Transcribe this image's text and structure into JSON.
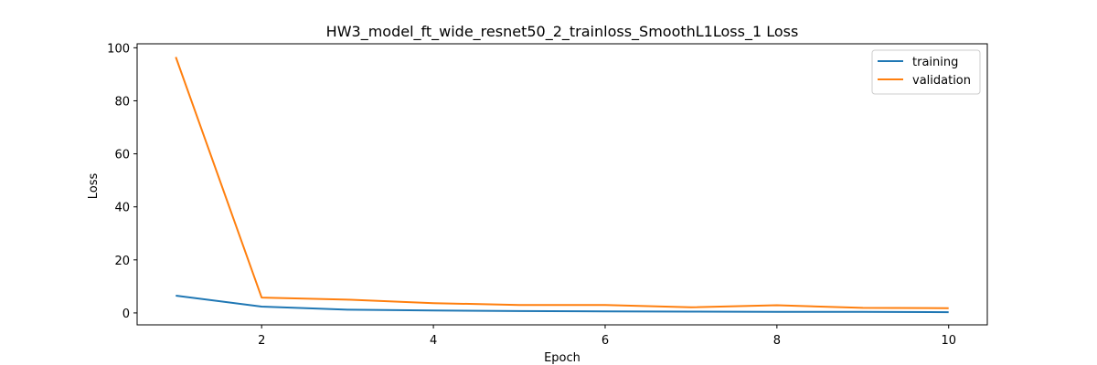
{
  "chart_data": {
    "type": "line",
    "title": "HW3_model_ft_wide_resnet50_2_trainloss_SmoothL1Loss_1 Loss",
    "xlabel": "Epoch",
    "ylabel": "Loss",
    "x": [
      1,
      2,
      3,
      4,
      5,
      6,
      7,
      8,
      9,
      10
    ],
    "xlim": [
      0.55,
      10.45
    ],
    "ylim": [
      -4.5,
      101.5
    ],
    "xticks": [
      2,
      4,
      6,
      8,
      10
    ],
    "yticks": [
      0,
      20,
      40,
      60,
      80,
      100
    ],
    "grid": false,
    "legend_position": "top-right",
    "series": [
      {
        "name": "training",
        "color": "#1f77b4",
        "values": [
          6.5,
          2.4,
          1.2,
          0.9,
          0.7,
          0.6,
          0.5,
          0.4,
          0.4,
          0.3
        ]
      },
      {
        "name": "validation",
        "color": "#ff7f0e",
        "values": [
          96.5,
          5.8,
          5.0,
          3.7,
          3.0,
          3.0,
          2.1,
          2.9,
          1.9,
          1.8
        ]
      }
    ]
  }
}
